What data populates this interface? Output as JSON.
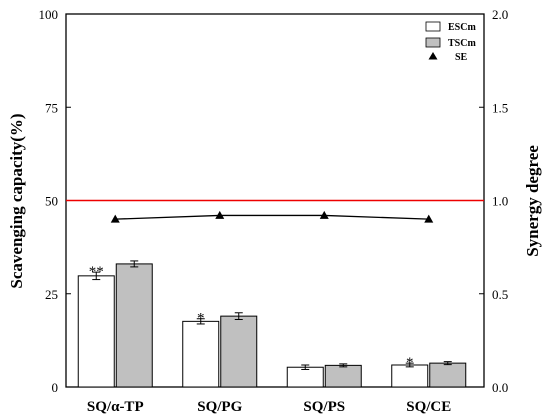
{
  "chart_data": {
    "type": "bar",
    "categories": [
      "SQ/α-TP",
      "SQ/PG",
      "SQ/PS",
      "SQ/CE"
    ],
    "series": [
      {
        "name": "ESCm",
        "type": "bar",
        "axis": "left",
        "values": [
          29.8,
          17.6,
          5.3,
          5.9
        ],
        "errors": [
          1.0,
          0.7,
          0.6,
          0.5
        ],
        "color": "#ffffff"
      },
      {
        "name": "TSCm",
        "type": "bar",
        "axis": "left",
        "values": [
          33.0,
          19.0,
          5.8,
          6.4
        ],
        "errors": [
          0.8,
          0.9,
          0.4,
          0.4
        ],
        "color": "#c0c0c0"
      },
      {
        "name": "SE",
        "type": "line",
        "axis": "right",
        "values": [
          0.9,
          0.92,
          0.92,
          0.9
        ],
        "color": "#000000"
      }
    ],
    "significance": [
      "**",
      "*",
      "",
      "*"
    ],
    "reference_line": {
      "axis": "right",
      "value": 1.0,
      "color": "#ee0000"
    },
    "ylabel": "Scavenging capacity(%)",
    "ylabel_right": "Synergy degree",
    "ylim": [
      0,
      100
    ],
    "ylim_right": [
      0,
      2.0
    ],
    "yticks": [
      "0",
      "25",
      "50",
      "75",
      "100"
    ],
    "yticks_right": [
      "0.0",
      "0.5",
      "1.0",
      "1.5",
      "2.0"
    ],
    "legend_placement": "top-right",
    "grid": false
  }
}
